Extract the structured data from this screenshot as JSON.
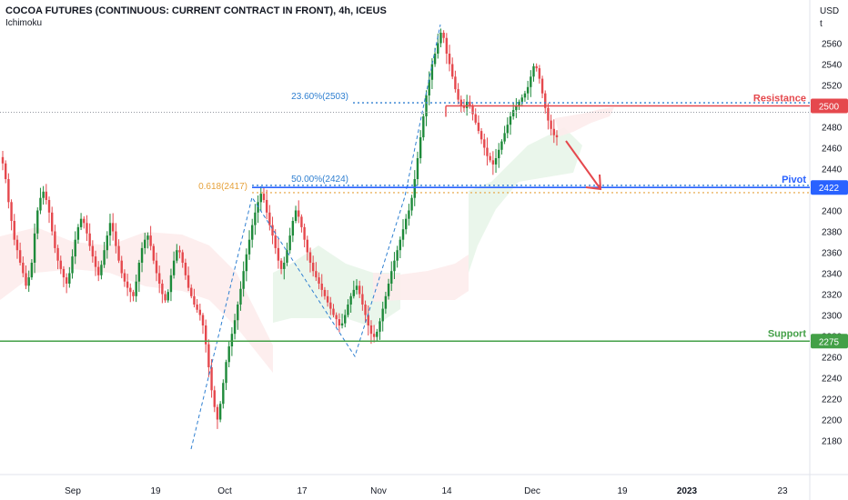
{
  "header": {
    "title": "COCOA FUTURES (CONTINUOUS: CURRENT CONTRACT IN FRONT), 4h, ICEUS",
    "indicator": "Ichimoku"
  },
  "colors": {
    "up": "#26a69a",
    "up_body": "#1e8a3a",
    "down": "#e5484d",
    "resistance": "#e5484d",
    "pivot": "#2962ff",
    "support": "#43a047",
    "fib_blue": "#2e7fd1",
    "fib_orange": "#e6a23c",
    "cloud_green": "#e8f5e9",
    "cloud_red": "#fdecec",
    "axis_text": "#131722"
  },
  "chart_data": {
    "type": "candlestick",
    "title": "COCOA FUTURES (CONTINUOUS: CURRENT CONTRACT IN FRONT), 4h, ICEUS",
    "y_axis": {
      "unit_label_1": "USD",
      "unit_label_2": "t",
      "range": [
        2170,
        2600
      ],
      "ticks": [
        2180,
        2200,
        2220,
        2240,
        2260,
        2280,
        2300,
        2320,
        2340,
        2360,
        2380,
        2400,
        2420,
        2440,
        2460,
        2480,
        2500,
        2520,
        2540,
        2560
      ]
    },
    "x_axis": {
      "ticks": [
        "Sep",
        "19",
        "Oct",
        "17",
        "Nov",
        "14",
        "Dec",
        "19",
        "2023",
        "23"
      ]
    },
    "levels": [
      {
        "name": "Resistance",
        "price": 2500,
        "label": "2500"
      },
      {
        "name": "Pivot",
        "price": 2422,
        "label": "2422"
      },
      {
        "name": "Support",
        "price": 2275,
        "label": "2275"
      }
    ],
    "fib_labels": [
      {
        "text": "23.60%(2503)",
        "price": 2503
      },
      {
        "text": "50.00%(2424)",
        "price": 2424
      },
      {
        "text": "0.618(2417)",
        "price": 2417
      }
    ],
    "prices": [
      2445,
      2430,
      2408,
      2390,
      2372,
      2362,
      2350,
      2340,
      2328,
      2336,
      2350,
      2378,
      2400,
      2412,
      2418,
      2410,
      2398,
      2380,
      2364,
      2352,
      2344,
      2336,
      2330,
      2340,
      2356,
      2372,
      2384,
      2392,
      2388,
      2378,
      2366,
      2356,
      2346,
      2338,
      2348,
      2362,
      2376,
      2388,
      2380,
      2366,
      2352,
      2340,
      2332,
      2326,
      2322,
      2318,
      2332,
      2350,
      2364,
      2372,
      2376,
      2366,
      2352,
      2340,
      2330,
      2320,
      2314,
      2322,
      2338,
      2352,
      2362,
      2360,
      2350,
      2338,
      2326,
      2318,
      2310,
      2305,
      2300,
      2290,
      2272,
      2250,
      2228,
      2212,
      2200,
      2215,
      2235,
      2255,
      2270,
      2282,
      2295,
      2310,
      2325,
      2342,
      2358,
      2372,
      2386,
      2398,
      2408,
      2416,
      2410,
      2398,
      2386,
      2376,
      2364,
      2352,
      2344,
      2350,
      2362,
      2376,
      2390,
      2400,
      2394,
      2384,
      2372,
      2360,
      2350,
      2342,
      2336,
      2330,
      2324,
      2318,
      2312,
      2306,
      2300,
      2296,
      2290,
      2292,
      2300,
      2310,
      2318,
      2324,
      2328,
      2320,
      2310,
      2300,
      2290,
      2282,
      2279,
      2284,
      2294,
      2306,
      2318,
      2330,
      2342,
      2352,
      2362,
      2372,
      2382,
      2392,
      2400,
      2412,
      2430,
      2450,
      2470,
      2490,
      2510,
      2525,
      2540,
      2550,
      2560,
      2570,
      2565,
      2550,
      2540,
      2528,
      2516,
      2506,
      2500,
      2498,
      2504,
      2500,
      2492,
      2484,
      2476,
      2468,
      2460,
      2452,
      2448,
      2444,
      2450,
      2458,
      2466,
      2474,
      2482,
      2490,
      2496,
      2500,
      2504,
      2508,
      2512,
      2518,
      2528,
      2538,
      2536,
      2526,
      2512,
      2498,
      2486,
      2478,
      2472,
      2470
    ],
    "ylim": [
      2170,
      2600
    ]
  }
}
